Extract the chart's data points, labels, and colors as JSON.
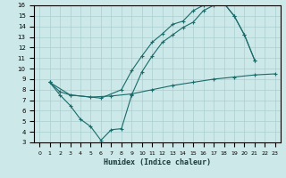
{
  "xlabel": "Humidex (Indice chaleur)",
  "bg_color": "#cce8e8",
  "line_color": "#1a6b6b",
  "grid_color": "#aacfcf",
  "xlim": [
    -0.5,
    23.5
  ],
  "ylim": [
    3,
    16
  ],
  "xticks": [
    0,
    1,
    2,
    3,
    4,
    5,
    6,
    7,
    8,
    9,
    10,
    11,
    12,
    13,
    14,
    15,
    16,
    17,
    18,
    19,
    20,
    21,
    22,
    23
  ],
  "yticks": [
    3,
    4,
    5,
    6,
    7,
    8,
    9,
    10,
    11,
    12,
    13,
    14,
    15,
    16
  ],
  "line1_x": [
    1,
    2,
    3,
    4,
    5,
    6,
    7,
    8,
    9,
    10,
    11,
    12,
    13,
    14,
    15,
    16,
    17,
    18,
    19,
    20,
    21
  ],
  "line1_y": [
    8.7,
    7.5,
    6.5,
    5.2,
    4.5,
    3.2,
    4.2,
    4.3,
    7.5,
    9.7,
    11.2,
    12.5,
    13.2,
    13.9,
    14.4,
    15.5,
    16.0,
    16.2,
    15.0,
    13.2,
    10.8
  ],
  "line2_x": [
    1,
    3,
    6,
    8,
    9,
    10,
    11,
    12,
    13,
    14,
    15,
    16,
    17,
    18,
    19,
    20,
    21
  ],
  "line2_y": [
    8.7,
    7.5,
    7.2,
    8.0,
    9.8,
    11.2,
    12.5,
    13.3,
    14.2,
    14.5,
    15.5,
    16.0,
    16.2,
    16.2,
    15.0,
    13.2,
    10.8
  ],
  "line3_x": [
    1,
    2,
    3,
    5,
    7,
    9,
    11,
    13,
    15,
    17,
    19,
    21,
    23
  ],
  "line3_y": [
    8.7,
    7.8,
    7.5,
    7.3,
    7.4,
    7.6,
    8.0,
    8.4,
    8.7,
    9.0,
    9.2,
    9.4,
    9.5
  ]
}
